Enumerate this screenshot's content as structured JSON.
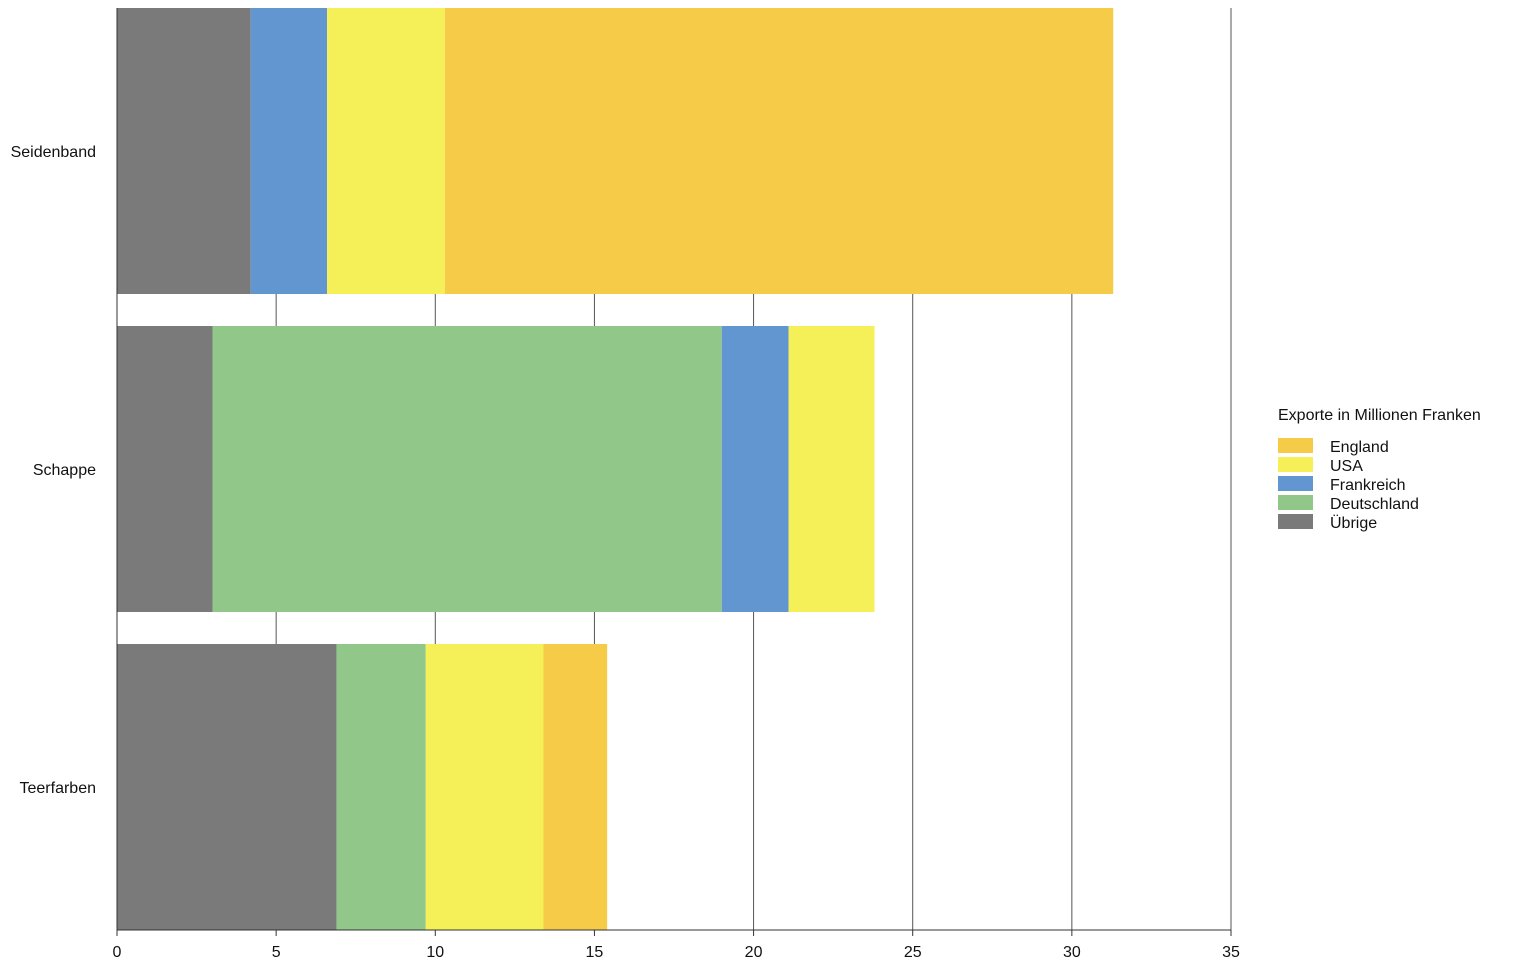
{
  "chart_data": {
    "type": "bar",
    "orientation": "horizontal",
    "stacked": true,
    "categories": [
      "Seidenband",
      "Schappe",
      "Teerfarben"
    ],
    "series": [
      {
        "name": "Übrige",
        "color": "#7a7a7a",
        "values": [
          4.2,
          3.0,
          6.9
        ]
      },
      {
        "name": "Deutschland",
        "color": "#92c78a",
        "values": [
          0,
          16.0,
          2.8
        ]
      },
      {
        "name": "Frankreich",
        "color": "#6296d0",
        "values": [
          2.4,
          2.1,
          0
        ]
      },
      {
        "name": "USA",
        "color": "#f5ef58",
        "values": [
          3.7,
          2.7,
          3.7
        ]
      },
      {
        "name": "England",
        "color": "#f5cb48",
        "values": [
          21.0,
          0,
          2.0
        ]
      }
    ],
    "xlim": [
      0,
      35
    ],
    "xticks": [
      "0",
      "5",
      "10",
      "15",
      "20",
      "25",
      "30",
      "35"
    ],
    "grid": "vertical",
    "legend": {
      "title": "Exporte in Millionen Franken",
      "position": "right",
      "order": [
        "England",
        "USA",
        "Frankreich",
        "Deutschland",
        "Übrige"
      ]
    }
  }
}
